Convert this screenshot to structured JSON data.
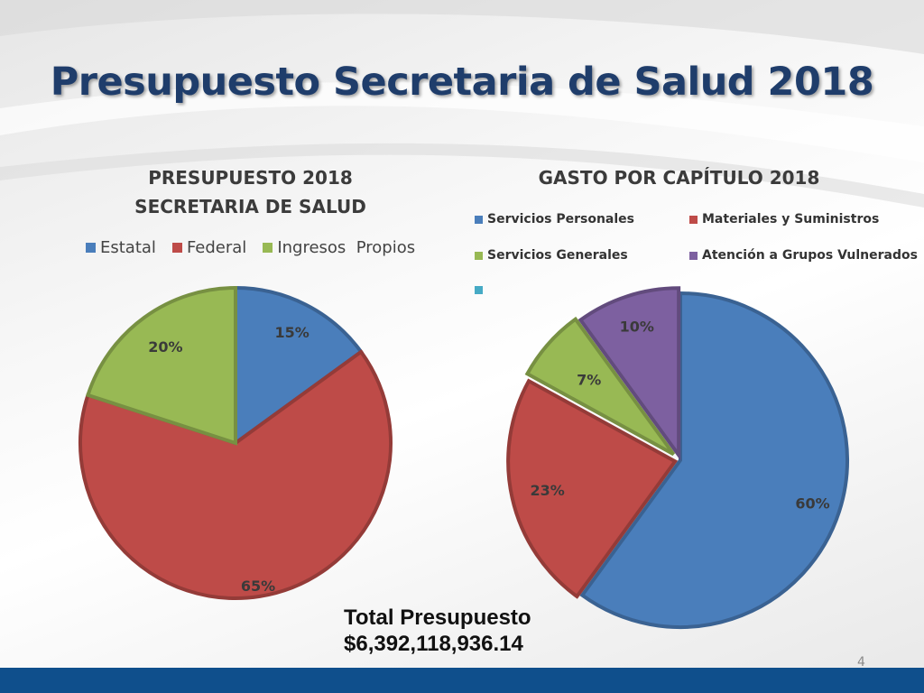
{
  "slide": {
    "title": "Presupuesto Secretaria de Salud 2018",
    "total_label": "Total Presupuesto",
    "total_value": "$6,392,118,936.14",
    "page_number": "4"
  },
  "chart_data": [
    {
      "type": "pie",
      "title_line1": "PRESUPUESTO 2018",
      "title_line2": "SECRETARIA DE SALUD",
      "categories": [
        "Estatal",
        "Federal",
        "Ingresos  Propios"
      ],
      "values": [
        15,
        65,
        20
      ],
      "labels": [
        "15%",
        "65%",
        "20%"
      ],
      "colors": [
        "#4a7ebb",
        "#be4b48",
        "#98b954"
      ],
      "legend_position": "top"
    },
    {
      "type": "pie",
      "title": "GASTO POR CAPÍTULO 2018",
      "categories": [
        "Servicios Personales",
        "Materiales y Suministros",
        "Servicios Generales",
        "Atención a Grupos Vulnerados",
        ""
      ],
      "values": [
        60,
        23,
        7,
        10,
        0
      ],
      "labels": [
        "60%",
        "23%",
        "7%",
        "10%",
        ""
      ],
      "colors": [
        "#4a7ebb",
        "#be4b48",
        "#98b954",
        "#7d60a0",
        "#46aac5"
      ],
      "legend_position": "top"
    }
  ]
}
